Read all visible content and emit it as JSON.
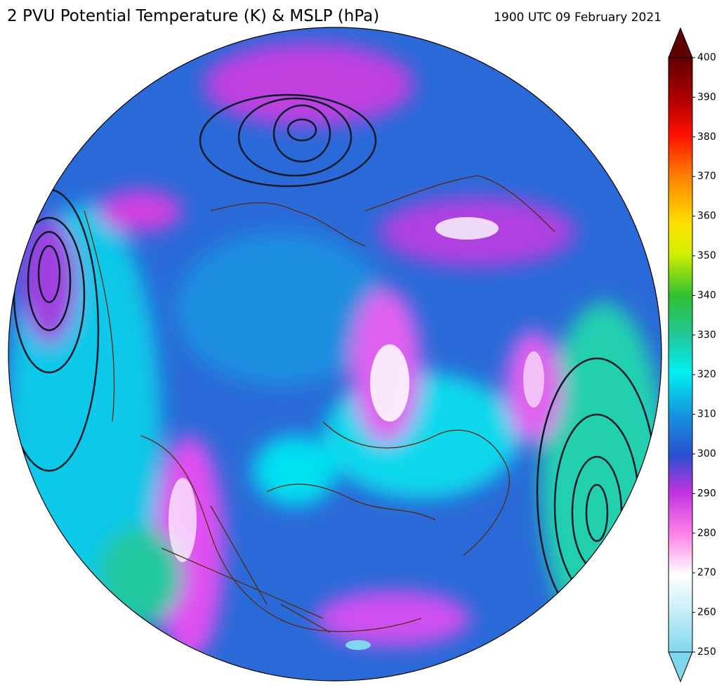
{
  "header": {
    "title": "2 PVU Potential Temperature (K) & MSLP (hPa)",
    "timestamp": "1900 UTC 09 February 2021"
  },
  "colorbar": {
    "lim": [
      250,
      400
    ],
    "ticks": [
      250,
      260,
      270,
      280,
      290,
      300,
      310,
      320,
      330,
      340,
      350,
      360,
      370,
      380,
      390,
      400
    ]
  }
}
